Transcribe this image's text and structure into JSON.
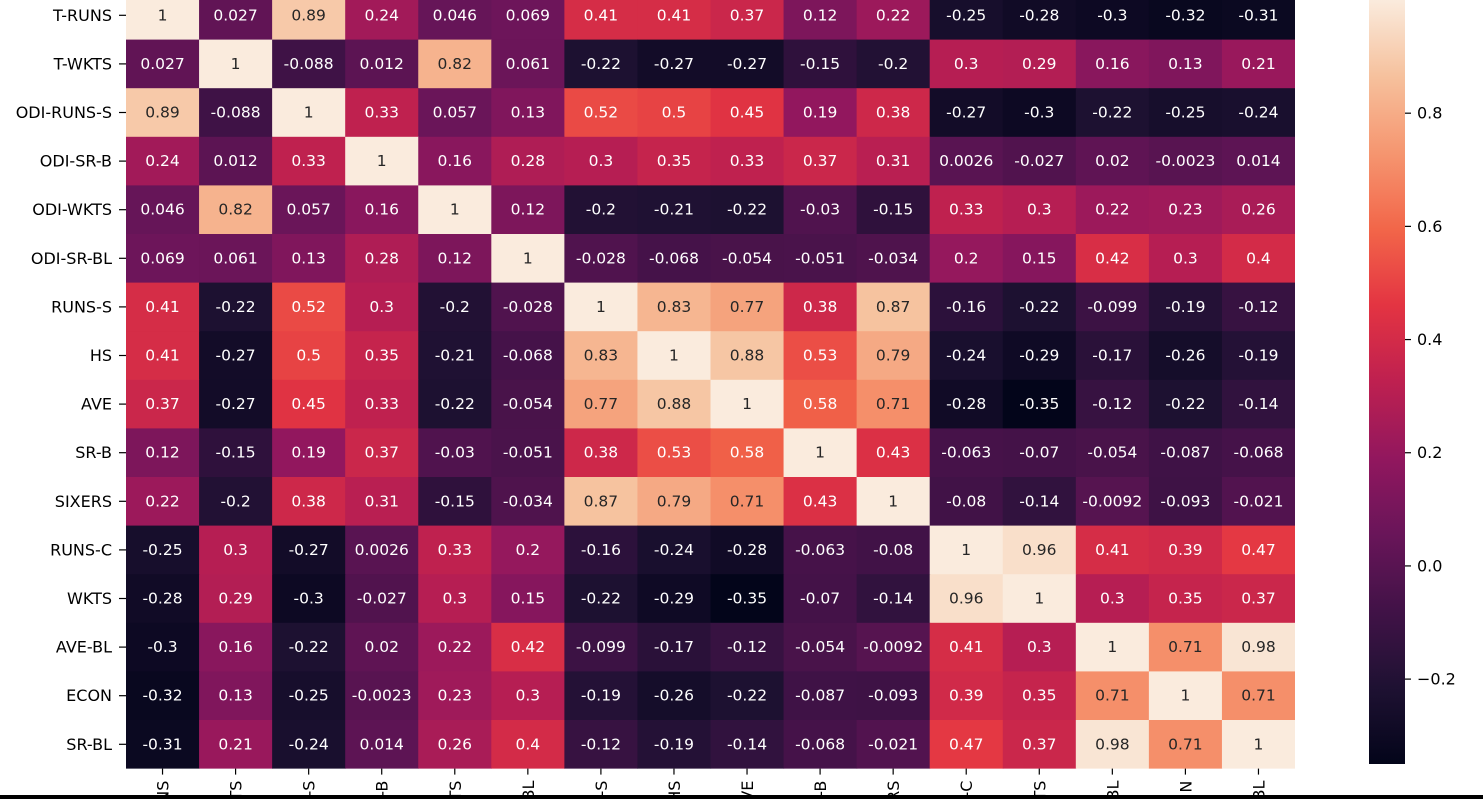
{
  "chart_data": {
    "type": "heatmap",
    "title": "",
    "xlabel": "",
    "ylabel": "",
    "y_labels": [
      "T-RUNS",
      "T-WKTS",
      "ODI-RUNS-S",
      "ODI-SR-B",
      "ODI-WKTS",
      "ODI-SR-BL",
      "RUNS-S",
      "HS",
      "AVE",
      "SR-B",
      "SIXERS",
      "RUNS-C",
      "WKTS",
      "AVE-BL",
      "ECON",
      "SR-BL"
    ],
    "x_labels": [
      "NS",
      "TS",
      "-S",
      "-B",
      "TS",
      "BL",
      "-S",
      "HS",
      "VE",
      "-B",
      "RS",
      "-C",
      "TS",
      "BL",
      "N",
      "BL"
    ],
    "values": [
      [
        1,
        0.027,
        0.89,
        0.24,
        0.046,
        0.069,
        0.41,
        0.41,
        0.37,
        0.12,
        0.22,
        -0.25,
        -0.28,
        -0.3,
        -0.32,
        -0.31
      ],
      [
        0.027,
        1,
        -0.088,
        0.012,
        0.82,
        0.061,
        -0.22,
        -0.27,
        -0.27,
        -0.15,
        -0.2,
        0.3,
        0.29,
        0.16,
        0.13,
        0.21
      ],
      [
        0.89,
        -0.088,
        1,
        0.33,
        0.057,
        0.13,
        0.52,
        0.5,
        0.45,
        0.19,
        0.38,
        -0.27,
        -0.3,
        -0.22,
        -0.25,
        -0.24
      ],
      [
        0.24,
        0.012,
        0.33,
        1,
        0.16,
        0.28,
        0.3,
        0.35,
        0.33,
        0.37,
        0.31,
        0.0026,
        -0.027,
        0.02,
        -0.0023,
        0.014
      ],
      [
        0.046,
        0.82,
        0.057,
        0.16,
        1,
        0.12,
        -0.2,
        -0.21,
        -0.22,
        -0.03,
        -0.15,
        0.33,
        0.3,
        0.22,
        0.23,
        0.26
      ],
      [
        0.069,
        0.061,
        0.13,
        0.28,
        0.12,
        1,
        -0.028,
        -0.068,
        -0.054,
        -0.051,
        -0.034,
        0.2,
        0.15,
        0.42,
        0.3,
        0.4
      ],
      [
        0.41,
        -0.22,
        0.52,
        0.3,
        -0.2,
        -0.028,
        1,
        0.83,
        0.77,
        0.38,
        0.87,
        -0.16,
        -0.22,
        -0.099,
        -0.19,
        -0.12
      ],
      [
        0.41,
        -0.27,
        0.5,
        0.35,
        -0.21,
        -0.068,
        0.83,
        1,
        0.88,
        0.53,
        0.79,
        -0.24,
        -0.29,
        -0.17,
        -0.26,
        -0.19
      ],
      [
        0.37,
        -0.27,
        0.45,
        0.33,
        -0.22,
        -0.054,
        0.77,
        0.88,
        1,
        0.58,
        0.71,
        -0.28,
        -0.35,
        -0.12,
        -0.22,
        -0.14
      ],
      [
        0.12,
        -0.15,
        0.19,
        0.37,
        -0.03,
        -0.051,
        0.38,
        0.53,
        0.58,
        1,
        0.43,
        -0.063,
        -0.07,
        -0.054,
        -0.087,
        -0.068
      ],
      [
        0.22,
        -0.2,
        0.38,
        0.31,
        -0.15,
        -0.034,
        0.87,
        0.79,
        0.71,
        0.43,
        1,
        -0.08,
        -0.14,
        -0.0092,
        -0.093,
        -0.021
      ],
      [
        -0.25,
        0.3,
        -0.27,
        0.0026,
        0.33,
        0.2,
        -0.16,
        -0.24,
        -0.28,
        -0.063,
        -0.08,
        1,
        0.96,
        0.41,
        0.39,
        0.47
      ],
      [
        -0.28,
        0.29,
        -0.3,
        -0.027,
        0.3,
        0.15,
        -0.22,
        -0.29,
        -0.35,
        -0.07,
        -0.14,
        0.96,
        1,
        0.3,
        0.35,
        0.37
      ],
      [
        -0.3,
        0.16,
        -0.22,
        0.02,
        0.22,
        0.42,
        -0.099,
        -0.17,
        -0.12,
        -0.054,
        -0.0092,
        0.41,
        0.3,
        1,
        0.71,
        0.98
      ],
      [
        -0.32,
        0.13,
        -0.25,
        -0.0023,
        0.23,
        0.3,
        -0.19,
        -0.26,
        -0.22,
        -0.087,
        -0.093,
        0.39,
        0.35,
        0.71,
        1,
        0.71
      ],
      [
        -0.31,
        0.21,
        -0.24,
        0.014,
        0.26,
        0.4,
        -0.12,
        -0.19,
        -0.14,
        -0.068,
        -0.021,
        0.47,
        0.37,
        0.98,
        0.71,
        1
      ]
    ],
    "colorbar": {
      "colormap": "rocket",
      "range": [
        -0.35,
        1.0
      ],
      "ticks": [
        0.8,
        0.6,
        0.4,
        0.2,
        0.0,
        -0.2
      ],
      "tick_labels": [
        "0.8",
        "0.6",
        "0.4",
        "0.2",
        "0.0",
        "−0.2"
      ]
    },
    "annotations": true,
    "grid": false,
    "legend": "colorbar right"
  }
}
